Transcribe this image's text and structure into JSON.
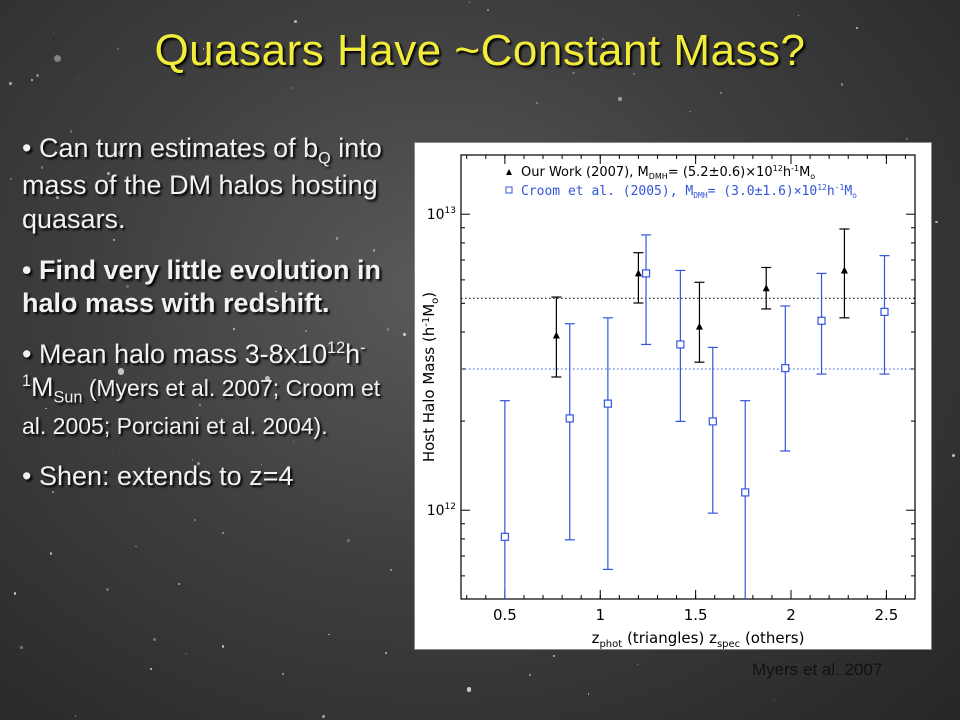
{
  "title": "Quasars Have ~Constant Mass?",
  "bullets": {
    "b1": {
      "text_a": "Can turn estimates of b",
      "sub": "Q",
      "text_b": " into mass of the DM halos hosting quasars."
    },
    "b2": {
      "text": "Find very little evolution in halo mass with redshift."
    },
    "b3": {
      "text_a": "Mean halo mass 3-8x10",
      "sup1": "12",
      "text_b": "h",
      "sup2": "-1",
      "text_c": "M",
      "sub": "Sun",
      "text_d": " (Myers et al. 2007; Croom et al. 2005; Porciani et al. 2004)."
    },
    "b4": {
      "text": "Shen: extends to z=4"
    }
  },
  "credit": "Myers et al. 2007",
  "chart_data": {
    "type": "scatter",
    "xlabel": "z_phot (triangles) z_spec (others)",
    "ylabel": "Host Halo Mass (h^-1 M_o)",
    "xlim": [
      0.27,
      2.65
    ],
    "ylim_log10": [
      11.7,
      13.2
    ],
    "log_y": true,
    "x_ticks": [
      "0.5",
      "1",
      "1.5",
      "2",
      "2.5"
    ],
    "y_ticks": [
      "10^12",
      "10^13"
    ],
    "legend_position": "top",
    "series": [
      {
        "name": "Our Work (2007), M_DMH= (5.2±0.6)×10^12 h^-1 M_o",
        "color": "#000000",
        "marker": "triangle",
        "mean_log10": 12.716,
        "points": [
          {
            "x": 0.77,
            "y": 12.59,
            "ylo": 12.45,
            "yhi": 12.72
          },
          {
            "x": 1.2,
            "y": 12.8,
            "ylo": 12.7,
            "yhi": 12.87
          },
          {
            "x": 1.52,
            "y": 12.62,
            "ylo": 12.5,
            "yhi": 12.77
          },
          {
            "x": 1.87,
            "y": 12.75,
            "ylo": 12.68,
            "yhi": 12.82
          },
          {
            "x": 2.28,
            "y": 12.81,
            "ylo": 12.65,
            "yhi": 12.95
          }
        ]
      },
      {
        "name": "Croom et al. (2005), M_DMH= (3.0±1.6)×10^12 h^-1 M_o",
        "color": "#3355dd",
        "marker": "square",
        "mean_log10": 12.477,
        "points": [
          {
            "x": 0.5,
            "y": 11.91,
            "ylo": 11.6,
            "yhi": 12.37
          },
          {
            "x": 0.84,
            "y": 12.31,
            "ylo": 11.9,
            "yhi": 12.63
          },
          {
            "x": 1.04,
            "y": 12.36,
            "ylo": 11.8,
            "yhi": 12.65
          },
          {
            "x": 1.24,
            "y": 12.8,
            "ylo": 12.56,
            "yhi": 12.93
          },
          {
            "x": 1.42,
            "y": 12.56,
            "ylo": 12.3,
            "yhi": 12.81
          },
          {
            "x": 1.59,
            "y": 12.3,
            "ylo": 11.99,
            "yhi": 12.55
          },
          {
            "x": 1.76,
            "y": 12.06,
            "ylo": 11.6,
            "yhi": 12.37
          },
          {
            "x": 1.97,
            "y": 12.48,
            "ylo": 12.2,
            "yhi": 12.69
          },
          {
            "x": 2.16,
            "y": 12.64,
            "ylo": 12.46,
            "yhi": 12.8
          },
          {
            "x": 2.49,
            "y": 12.67,
            "ylo": 12.46,
            "yhi": 12.86
          }
        ]
      }
    ],
    "legend": {
      "black": {
        "pre": "Our Work (2007), M",
        "sub": "DMH",
        "mid": "= (5.2±0.6)×10",
        "sup": "12",
        "post": "h",
        "sup2": "-1",
        "m": "M",
        "msub": "o"
      },
      "blue": {
        "pre": "Croom et al. (2005), M",
        "sub": "DMH",
        "mid": "= (3.0±1.6)×10",
        "sup": "12",
        "post": "h",
        "sup2": "-1",
        "m": "M",
        "msub": "o"
      }
    },
    "xlabel_parts": {
      "z1": "z",
      "sub1": "phot",
      "mid": " (triangles) ",
      "z2": "z",
      "sub2": "spec",
      "end": " (others)"
    },
    "ylabel_parts": {
      "main": "Host Halo Mass (h",
      "sup": "-1",
      "m": "M",
      "sub": "o",
      "end": ")"
    },
    "y_tick_parts": [
      {
        "base": "10",
        "exp": "12",
        "v": 12
      },
      {
        "base": "10",
        "exp": "13",
        "v": 13
      }
    ]
  }
}
